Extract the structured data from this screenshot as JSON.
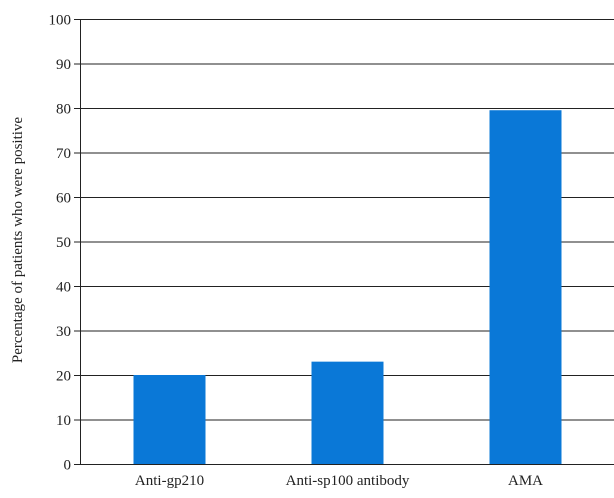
{
  "chart_data": {
    "type": "bar",
    "title": "",
    "xlabel": "",
    "ylabel": "Percentage of patients who were positive",
    "categories": [
      "Anti-gp210",
      "Anti-sp100 antibody",
      "AMA"
    ],
    "values": [
      20,
      23,
      79.5
    ],
    "ylim": [
      0,
      100
    ],
    "yticks": [
      0,
      10,
      20,
      30,
      40,
      50,
      60,
      70,
      80,
      90,
      100
    ],
    "grid": true,
    "legend": "none"
  },
  "colors": {
    "bar": "#0a78d7",
    "grid": "#222222",
    "axis": "#222222"
  }
}
